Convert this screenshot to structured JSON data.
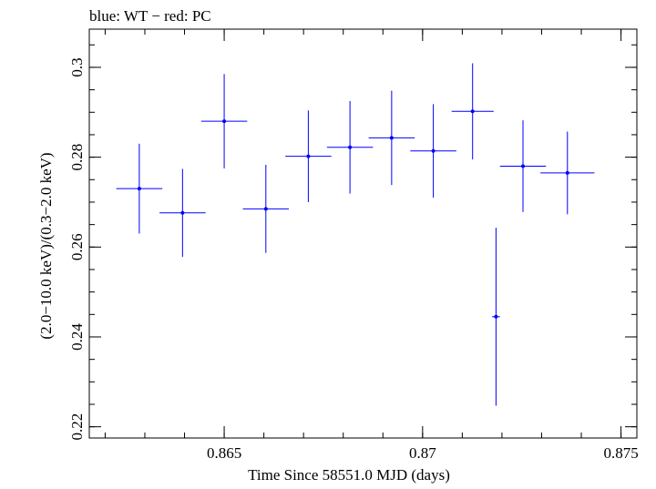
{
  "chart_data": {
    "type": "scatter",
    "title": "blue: WT − red: PC",
    "xlabel": "Time Since 58551.0 MJD (days)",
    "ylabel": "(2.0−10.0 keV)/(0.3−2.0 keV)",
    "xlim": [
      0.8616,
      0.8754
    ],
    "ylim": [
      0.2175,
      0.3085
    ],
    "x_ticks": [
      0.865,
      0.87,
      0.875
    ],
    "x_tick_labels": [
      "0.865",
      "0.87",
      "0.875"
    ],
    "x_minor_step": 0.001,
    "y_ticks": [
      0.22,
      0.24,
      0.26,
      0.28,
      0.3
    ],
    "y_tick_labels": [
      "0.22",
      "0.24",
      "0.26",
      "0.28",
      "0.3"
    ],
    "y_minor_step": 0.005,
    "grid": false,
    "series": [
      {
        "color": "#0000ff",
        "points": [
          {
            "x": 0.86286,
            "y": 0.273,
            "xerr": 0.00058,
            "yerr": 0.01
          },
          {
            "x": 0.86395,
            "y": 0.2676,
            "xerr": 0.00058,
            "yerr": 0.0098
          },
          {
            "x": 0.865,
            "y": 0.288,
            "xerr": 0.00058,
            "yerr": 0.0105
          },
          {
            "x": 0.86605,
            "y": 0.2685,
            "xerr": 0.00058,
            "yerr": 0.0098
          },
          {
            "x": 0.86712,
            "y": 0.2802,
            "xerr": 0.00058,
            "yerr": 0.0102
          },
          {
            "x": 0.86817,
            "y": 0.2822,
            "xerr": 0.00058,
            "yerr": 0.0103
          },
          {
            "x": 0.86922,
            "y": 0.2843,
            "xerr": 0.00058,
            "yerr": 0.0105
          },
          {
            "x": 0.87027,
            "y": 0.2814,
            "xerr": 0.00058,
            "yerr": 0.0104
          },
          {
            "x": 0.87126,
            "y": 0.2902,
            "xerr": 0.00053,
            "yerr": 0.0107
          },
          {
            "x": 0.87185,
            "y": 0.2445,
            "xerr": 0.0001,
            "yerr": 0.0198
          },
          {
            "x": 0.87253,
            "y": 0.278,
            "xerr": 0.00058,
            "yerr": 0.0102
          },
          {
            "x": 0.87365,
            "y": 0.2765,
            "xerr": 0.00068,
            "yerr": 0.0092
          }
        ]
      }
    ]
  }
}
